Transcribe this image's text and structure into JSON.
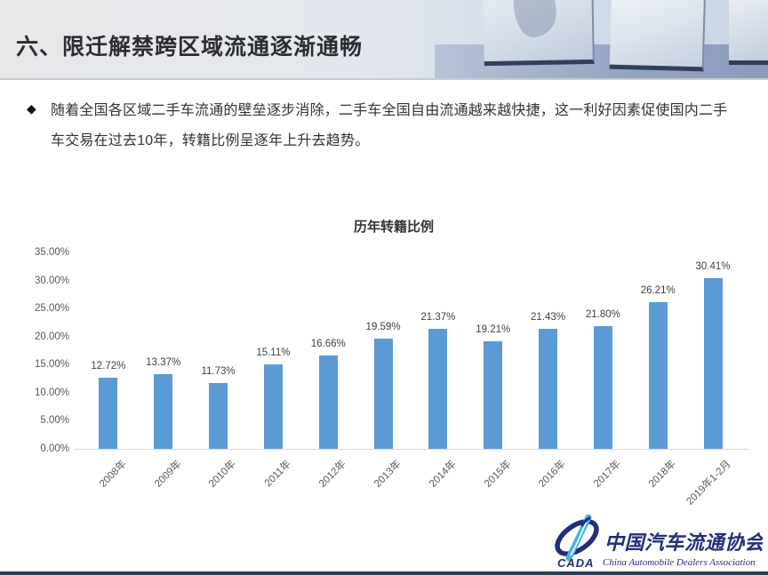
{
  "header": {
    "title": "六、限迁解禁跨区域流通逐渐通畅"
  },
  "body": {
    "bullet_glyph": "◆",
    "paragraph": "随着全国各区域二手车流通的壁垒逐步消除，二手车全国自由流通越来越快捷，这一利好因素促使国内二手车交易在过去10年，转籍比例呈逐年上升去趋势。"
  },
  "chart_data": {
    "type": "bar",
    "title": "历年转籍比例",
    "categories": [
      "2008年",
      "2009年",
      "2010年",
      "2011年",
      "2012年",
      "2013年",
      "2014年",
      "2015年",
      "2016年",
      "2017年",
      "2018年",
      "2019年1-2月"
    ],
    "values": [
      12.72,
      13.37,
      11.73,
      15.11,
      16.66,
      19.59,
      21.37,
      19.21,
      21.43,
      21.8,
      26.21,
      30.41
    ],
    "value_labels": [
      "12.72%",
      "13.37%",
      "11.73%",
      "15.11%",
      "16.66%",
      "19.59%",
      "21.37%",
      "19.21%",
      "21.43%",
      "21.80%",
      "26.21%",
      "30.41%"
    ],
    "yticks": [
      0,
      5,
      10,
      15,
      20,
      25,
      30,
      35
    ],
    "ytick_labels": [
      "0.00%",
      "5.00%",
      "10.00%",
      "15.00%",
      "20.00%",
      "25.00%",
      "30.00%",
      "35.00%"
    ],
    "ylim": [
      0,
      35
    ],
    "xlabel": "",
    "ylabel": "",
    "grid": false,
    "legend": "none",
    "data_labels": true,
    "bar_color": "#5b9bd5",
    "axis_line_color": "#d6d6d6"
  },
  "footer": {
    "logo": {
      "acronym": "CADA",
      "name_cn": "中国汽车流通协会",
      "name_en": "China Automobile Dealers Association",
      "navy": "#232e7a",
      "cyan": "#45b7dd"
    }
  }
}
